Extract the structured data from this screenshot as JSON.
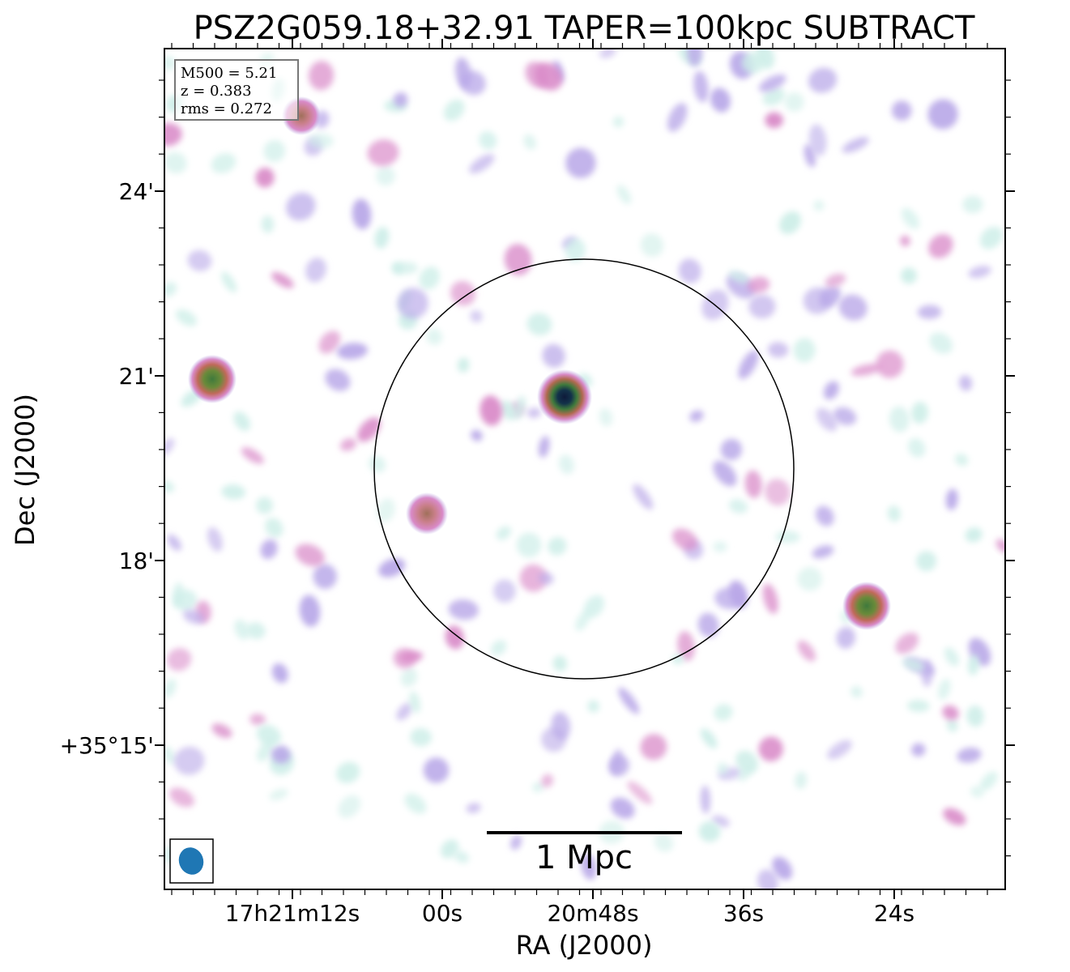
{
  "title": "PSZ2G059.18+32.91 TAPER=100kpc SUBTRACT",
  "info_box": {
    "lines": [
      "M500 = 5.21",
      "z = 0.383",
      "rms = 0.272"
    ]
  },
  "axes": {
    "xlabel": "RA (J2000)",
    "ylabel": "Dec (J2000)",
    "x_ticks": [
      "17h21m12s",
      "00s",
      "20m48s",
      "36s",
      "24s"
    ],
    "y_ticks": [
      "24'",
      "21'",
      "18'",
      "+35°15'"
    ]
  },
  "scale_bar": {
    "label": "1 Mpc"
  },
  "colors": {
    "frame": "#000000",
    "beam": "#1f77b4",
    "cmap_low": "#cdeee8",
    "cmap_mid": "#b9a8e8",
    "cmap_pink": "#d98ac8",
    "cmap_high": "#5a8a3a",
    "cmap_peak": "#0e1a3a"
  },
  "sources": [
    {
      "name": "central-source",
      "brightness": "peak"
    },
    {
      "name": "east-source",
      "brightness": "high"
    },
    {
      "name": "west-source",
      "brightness": "high"
    },
    {
      "name": "inner-west-source",
      "brightness": "high"
    },
    {
      "name": "north-west-source",
      "brightness": "pink"
    }
  ]
}
